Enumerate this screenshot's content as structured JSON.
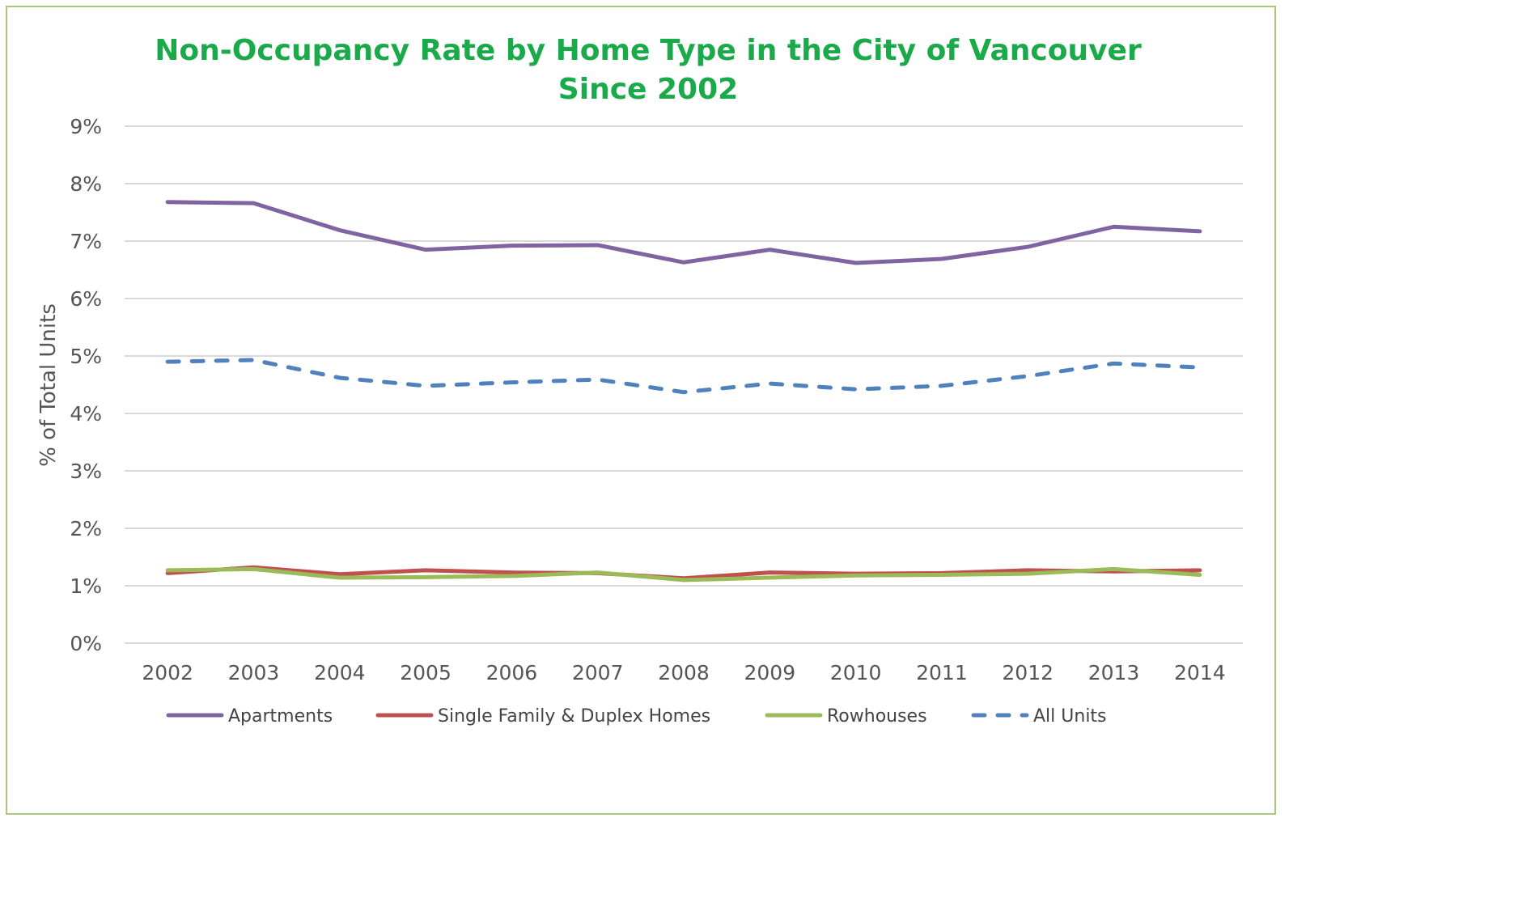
{
  "chart_data": {
    "type": "line",
    "title": "Non-Occupancy Rate by Home Type in the City of Vancouver",
    "subtitle": "Since 2002",
    "xlabel": "",
    "ylabel": "% of Total Units",
    "ylim": [
      0,
      9
    ],
    "yticks": [
      "0%",
      "1%",
      "2%",
      "3%",
      "4%",
      "5%",
      "6%",
      "7%",
      "8%",
      "9%"
    ],
    "grid": true,
    "legend_position": "bottom",
    "categories": [
      "2002",
      "2003",
      "2004",
      "2005",
      "2006",
      "2007",
      "2008",
      "2009",
      "2010",
      "2011",
      "2012",
      "2013",
      "2014"
    ],
    "series": [
      {
        "name": "Apartments",
        "color": "#8064a2",
        "dash": false,
        "values": [
          7.68,
          7.66,
          7.19,
          6.85,
          6.92,
          6.93,
          6.63,
          6.85,
          6.62,
          6.69,
          6.9,
          7.25,
          7.17
        ]
      },
      {
        "name": "Single Family & Duplex Homes",
        "color": "#c0504d",
        "dash": false,
        "values": [
          1.22,
          1.32,
          1.2,
          1.27,
          1.23,
          1.22,
          1.13,
          1.23,
          1.21,
          1.22,
          1.27,
          1.25,
          1.27
        ]
      },
      {
        "name": "Rowhouses",
        "color": "#9bbb59",
        "dash": false,
        "values": [
          1.27,
          1.29,
          1.14,
          1.15,
          1.17,
          1.23,
          1.1,
          1.14,
          1.18,
          1.19,
          1.21,
          1.29,
          1.19
        ]
      },
      {
        "name": "All Units",
        "color": "#4f81bd",
        "dash": true,
        "values": [
          4.9,
          4.93,
          4.62,
          4.48,
          4.54,
          4.59,
          4.37,
          4.52,
          4.42,
          4.48,
          4.65,
          4.87,
          4.8
        ]
      }
    ]
  }
}
